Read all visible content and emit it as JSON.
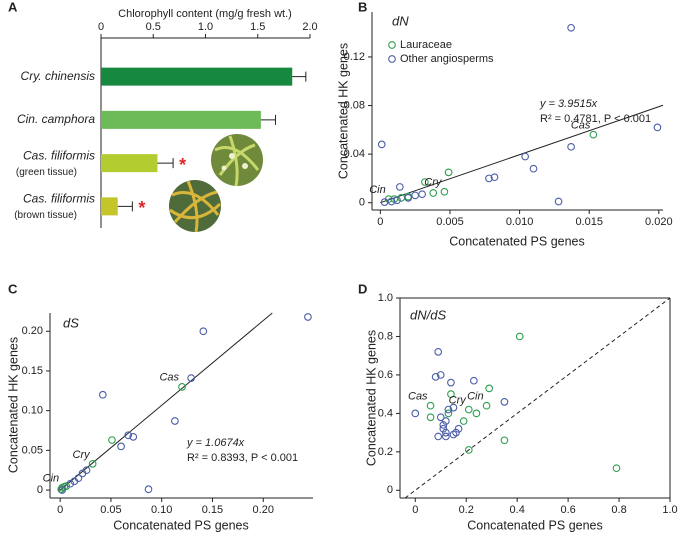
{
  "chart_data": [
    {
      "type": "bar",
      "panel": "A",
      "orientation": "horizontal",
      "xlabel": "Chlorophyll content (mg/g fresh wt.)",
      "categories": [
        "Cry. chinensis",
        "Cin. camphora",
        "Cas. filiformis",
        "Cas. filiformis"
      ],
      "category_notes": [
        null,
        null,
        "(green tissue)",
        "(brown tissue)"
      ],
      "values": [
        1.83,
        1.53,
        0.54,
        0.16
      ],
      "errors": [
        0.13,
        0.14,
        0.15,
        0.14
      ],
      "colors": [
        "#17893e",
        "#6cbb58",
        "#b3cc2f",
        "#c4c52b"
      ],
      "significance": [
        null,
        null,
        "*",
        "*"
      ],
      "xlim": [
        0,
        2
      ],
      "xticks": [
        0,
        0.5,
        {
          "value": 1,
          "label": "1.0"
        },
        1.5,
        {
          "value": 2,
          "label": "2.0"
        }
      ]
    },
    {
      "type": "scatter",
      "panel": "B",
      "title": "dN",
      "xlabel": "Concatenated PS genes",
      "ylabel": "Concatenated HK genes",
      "xlim": [
        -0.0006,
        0.0203
      ],
      "ylim": [
        -0.006,
        0.157
      ],
      "xticks": [
        0,
        0.005,
        {
          "value": 0.01,
          "label": "0.010"
        },
        0.015,
        {
          "value": 0.02,
          "label": "0.020"
        }
      ],
      "yticks": [
        0,
        0.04,
        0.08,
        0.12
      ],
      "legend": "upper left",
      "box": false,
      "fit": {
        "slope": 3.9515,
        "equation": "y = 3.9515x",
        "stats": "R² = 0.4781, P < 0.001"
      },
      "series": [
        {
          "name": "Lauraceae",
          "color": "#2e9e4f",
          "x": [
            0.0153,
            0.0049,
            0.0032,
            0.0046,
            0.0038,
            0.0006,
            0.001,
            0.0015,
            0.002
          ],
          "y": [
            0.056,
            0.025,
            0.017,
            0.009,
            0.008,
            0.003,
            0.003,
            0.004,
            0.005
          ],
          "labels": [
            "Cas",
            null,
            null,
            "Cry",
            null,
            "Cin",
            null,
            null,
            null
          ]
        },
        {
          "name": "Other angiosperms",
          "color": "#4a5ea8",
          "x": [
            0.0001,
            0.0137,
            0.0199,
            0.0137,
            0.0104,
            0.011,
            0.0078,
            0.0082,
            0.0128,
            0.0014,
            0.0025,
            0.003,
            0.002,
            0.0008,
            0.0003,
            0.0012
          ],
          "y": [
            0.048,
            0.144,
            0.062,
            0.046,
            0.038,
            0.028,
            0.02,
            0.021,
            0.001,
            0.013,
            0.006,
            0.007,
            0.004,
            0.001,
            0.0005,
            0.002
          ]
        }
      ]
    },
    {
      "type": "scatter",
      "panel": "C",
      "title": "dS",
      "xlabel": "Concatenated PS genes",
      "ylabel": "Concatenated HK genes",
      "xlim": [
        -0.01,
        0.249
      ],
      "ylim": [
        -0.01,
        0.223
      ],
      "xticks": [
        0,
        0.05,
        {
          "value": 0.1,
          "label": "0.10"
        },
        0.15,
        {
          "value": 0.2,
          "label": "0.20"
        }
      ],
      "yticks": [
        0,
        0.05,
        {
          "value": 0.1,
          "label": "0.10"
        },
        0.15,
        {
          "value": 0.2,
          "label": "0.20"
        }
      ],
      "box": false,
      "fit": {
        "slope": 1.0674,
        "equation": "y = 1.0674x",
        "stats": "R² = 0.8393, P < 0.001"
      },
      "series": [
        {
          "name": "Lauraceae",
          "color": "#2e9e4f",
          "x": [
            0.12,
            0.051,
            0.032,
            0.006,
            0.004,
            0.002,
            0.001
          ],
          "y": [
            0.13,
            0.063,
            0.033,
            0.005,
            0.004,
            0.003,
            0.001
          ],
          "labels": [
            "Cas",
            null,
            "Cry",
            null,
            null,
            "Cin",
            null
          ]
        },
        {
          "name": "Other angiosperms",
          "color": "#4a5ea8",
          "x": [
            0.244,
            0.141,
            0.129,
            0.042,
            0.113,
            0.067,
            0.072,
            0.06,
            0.087,
            0.026,
            0.022,
            0.018,
            0.014,
            0.01,
            0.002
          ],
          "y": [
            0.218,
            0.2,
            0.141,
            0.12,
            0.087,
            0.069,
            0.067,
            0.055,
            0.001,
            0.025,
            0.021,
            0.015,
            0.011,
            0.008,
            0.0
          ]
        }
      ]
    },
    {
      "type": "scatter",
      "panel": "D",
      "title": "dN/dS",
      "xlabel": "Concatenated PS genes",
      "ylabel": "Concatenated HK genes",
      "xlim": [
        -0.06,
        1
      ],
      "ylim": [
        -0.04,
        1
      ],
      "xticks": [
        0,
        0.2,
        0.4,
        0.6,
        0.8,
        {
          "value": 1,
          "label": "1.0"
        }
      ],
      "yticks": [
        0,
        0.2,
        0.4,
        0.6,
        0.8,
        {
          "value": 1,
          "label": "1.0"
        }
      ],
      "box": true,
      "diagonal": true,
      "series": [
        {
          "name": "Lauraceae",
          "color": "#2e9e4f",
          "x": [
            0.41,
            0.79,
            0.35,
            0.21,
            0.29,
            0.06,
            0.06,
            0.14,
            0.13,
            0.19,
            0.21,
            0.24,
            0.28
          ],
          "y": [
            0.8,
            0.115,
            0.26,
            0.21,
            0.53,
            0.44,
            0.38,
            0.5,
            0.4,
            0.36,
            0.42,
            0.4,
            0.44
          ],
          "labels": [
            null,
            null,
            null,
            null,
            null,
            "Cas",
            null,
            null,
            null,
            null,
            "Cry",
            null,
            "Cin"
          ]
        },
        {
          "name": "Other angiosperms",
          "color": "#4a5ea8",
          "x": [
            0,
            0.09,
            0.08,
            0.1,
            0.12,
            0.11,
            0.1,
            0.12,
            0.09,
            0.13,
            0.15,
            0.16,
            0.17,
            0.15,
            0.14,
            0.23,
            0.35,
            0.12,
            0.11
          ],
          "y": [
            0.4,
            0.72,
            0.59,
            0.6,
            0.36,
            0.34,
            0.38,
            0.28,
            0.28,
            0.42,
            0.29,
            0.3,
            0.32,
            0.43,
            0.56,
            0.57,
            0.46,
            0.3,
            0.32
          ]
        }
      ]
    }
  ]
}
